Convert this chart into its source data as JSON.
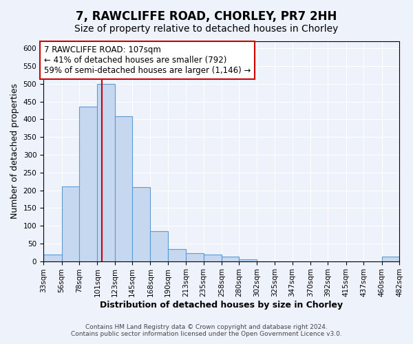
{
  "title": "7, RAWCLIFFE ROAD, CHORLEY, PR7 2HH",
  "subtitle": "Size of property relative to detached houses in Chorley",
  "xlabel": "Distribution of detached houses by size in Chorley",
  "ylabel": "Number of detached properties",
  "bin_edges": [
    33,
    56,
    78,
    101,
    123,
    145,
    168,
    190,
    213,
    235,
    258,
    280,
    302,
    325,
    347,
    370,
    392,
    415,
    437,
    460,
    482
  ],
  "bar_heights": [
    18,
    211,
    435,
    500,
    408,
    208,
    85,
    35,
    22,
    18,
    13,
    5,
    0,
    0,
    0,
    0,
    0,
    0,
    0,
    13
  ],
  "bar_color": "#c5d8f0",
  "bar_edge_color": "#5b9bd5",
  "vline_x": 107,
  "vline_color": "#cc0000",
  "annotation_text": "7 RAWCLIFFE ROAD: 107sqm\n← 41% of detached houses are smaller (792)\n59% of semi-detached houses are larger (1,146) →",
  "annotation_box_color": "white",
  "annotation_box_edge": "#cc0000",
  "ylim": [
    0,
    620
  ],
  "yticks": [
    0,
    50,
    100,
    150,
    200,
    250,
    300,
    350,
    400,
    450,
    500,
    550,
    600
  ],
  "tick_labels": [
    "33sqm",
    "56sqm",
    "78sqm",
    "101sqm",
    "123sqm",
    "145sqm",
    "168sqm",
    "190sqm",
    "213sqm",
    "235sqm",
    "258sqm",
    "280sqm",
    "302sqm",
    "325sqm",
    "347sqm",
    "370sqm",
    "392sqm",
    "415sqm",
    "437sqm",
    "460sqm",
    "482sqm"
  ],
  "footer_text": "Contains HM Land Registry data © Crown copyright and database right 2024.\nContains public sector information licensed under the Open Government Licence v3.0.",
  "background_color": "#eef2fb",
  "grid_color": "#ffffff",
  "title_fontsize": 12,
  "subtitle_fontsize": 10,
  "axis_label_fontsize": 9,
  "tick_fontsize": 7.5,
  "annotation_fontsize": 8.5,
  "footer_fontsize": 6.5
}
